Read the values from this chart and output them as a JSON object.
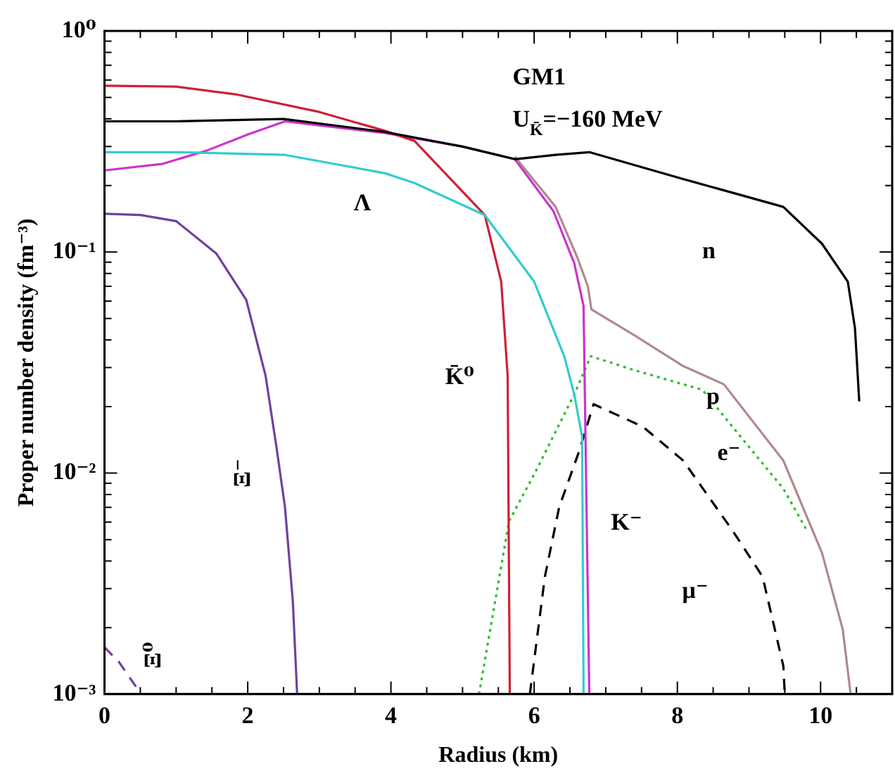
{
  "chart_data": {
    "type": "line",
    "xlabel": "Radius (km)",
    "ylabel": "Proper number density (fm⁻³)",
    "log": "y",
    "annotations": [
      "GM1",
      "U$_{K̄}$=−160 MeV"
    ],
    "xlim": [
      0,
      11
    ],
    "xticks": [
      0,
      {
        "value": 0.5,
        "label": null
      },
      {
        "value": 1,
        "label": null
      },
      {
        "value": 1.5,
        "label": null
      },
      2,
      {
        "value": 2.5,
        "label": null
      },
      {
        "value": 3,
        "label": null
      },
      {
        "value": 3.5,
        "label": null
      },
      4,
      {
        "value": 4.5,
        "label": null
      },
      {
        "value": 5,
        "label": null
      },
      {
        "value": 5.5,
        "label": null
      },
      6,
      {
        "value": 6.5,
        "label": null
      },
      {
        "value": 7,
        "label": null
      },
      {
        "value": 7.5,
        "label": null
      },
      8,
      {
        "value": 8.5,
        "label": null
      },
      {
        "value": 9,
        "label": null
      },
      {
        "value": 9.5,
        "label": null
      },
      10,
      {
        "value": 10.5,
        "label": null
      }
    ],
    "ylim": [
      0.001,
      1
    ],
    "yticks": [
      {
        "value": 0.001,
        "label": "10⁻³"
      },
      {
        "value": 0.002,
        "label": null
      },
      {
        "value": 0.003,
        "label": null
      },
      {
        "value": 0.004,
        "label": null
      },
      {
        "value": 0.005,
        "label": null
      },
      {
        "value": 0.006,
        "label": null
      },
      {
        "value": 0.007,
        "label": null
      },
      {
        "value": 0.008,
        "label": null
      },
      {
        "value": 0.009,
        "label": null
      },
      {
        "value": 0.01,
        "label": "10⁻²"
      },
      {
        "value": 0.02,
        "label": null
      },
      {
        "value": 0.03,
        "label": null
      },
      {
        "value": 0.04,
        "label": null
      },
      {
        "value": 0.05,
        "label": null
      },
      {
        "value": 0.06,
        "label": null
      },
      {
        "value": 0.07,
        "label": null
      },
      {
        "value": 0.08,
        "label": null
      },
      {
        "value": 0.09,
        "label": null
      },
      {
        "value": 0.1,
        "label": "10⁻¹"
      },
      {
        "value": 0.2,
        "label": null
      },
      {
        "value": 0.3,
        "label": null
      },
      {
        "value": 0.4,
        "label": null
      },
      {
        "value": 0.5,
        "label": null
      },
      {
        "value": 0.6,
        "label": null
      },
      {
        "value": 0.7,
        "label": null
      },
      {
        "value": 0.8,
        "label": null
      },
      {
        "value": 0.9,
        "label": null
      },
      {
        "value": 1,
        "label": "10⁰"
      }
    ],
    "series": [
      {
        "name": "n",
        "color": "#000000",
        "line_style": "solid",
        "x": [
          0,
          1,
          2.5,
          3.9,
          5.0,
          5.73,
          6.3,
          6.77,
          8.08,
          9.48,
          10.02,
          10.38,
          10.48,
          10.54
        ],
        "values": [
          0.39,
          0.39,
          0.4,
          0.35,
          0.3,
          0.263,
          0.275,
          0.283,
          0.214,
          0.16,
          0.109,
          0.0735,
          0.0453,
          0.0211
        ]
      },
      {
        "name": "p",
        "color": "#b08890",
        "line_style": "solid",
        "x": [
          5.73,
          6.3,
          6.6,
          6.75,
          6.8,
          7.4,
          8.08,
          8.65,
          9.48,
          10.02,
          10.31,
          10.42
        ],
        "values": [
          0.27,
          0.16,
          0.095,
          0.07,
          0.055,
          0.042,
          0.0305,
          0.0252,
          0.0114,
          0.00435,
          0.00196,
          0.001
        ]
      },
      {
        "name": "Λ",
        "color": "#33cccc",
        "line_style": "solid",
        "x": [
          0,
          1,
          2.52,
          3.92,
          4.33,
          5.31,
          6.0,
          6.42,
          6.56,
          6.67,
          6.69
        ],
        "values": [
          0.283,
          0.283,
          0.275,
          0.227,
          0.205,
          0.147,
          0.0735,
          0.0338,
          0.0227,
          0.0146,
          0.001
        ]
      },
      {
        "name": "K̄⁰",
        "color": "#cc2233",
        "line_style": "solid",
        "x": [
          0,
          1,
          1.83,
          3.0,
          3.92,
          4.33,
          5.31,
          5.54,
          5.63,
          5.66
        ],
        "values": [
          0.565,
          0.56,
          0.517,
          0.43,
          0.353,
          0.318,
          0.147,
          0.0735,
          0.0275,
          0.001
        ]
      },
      {
        "name": "K⁻",
        "color": "#cc33cc",
        "line_style": "solid",
        "x": [
          0,
          0.8,
          1.42,
          2.0,
          2.52,
          3.92,
          5.0,
          5.73,
          6.27,
          6.56,
          6.69,
          6.77
        ],
        "values": [
          0.234,
          0.25,
          0.287,
          0.34,
          0.39,
          0.345,
          0.3,
          0.263,
          0.153,
          0.089,
          0.057,
          0.001
        ]
      },
      {
        "name": "Ξ⁻",
        "color": "#7040a0",
        "line_style": "solid",
        "x": [
          0,
          0.5,
          1.0,
          1.56,
          1.98,
          2.25,
          2.4,
          2.52,
          2.63,
          2.69
        ],
        "values": [
          0.149,
          0.147,
          0.138,
          0.0986,
          0.0607,
          0.0275,
          0.0132,
          0.00703,
          0.00263,
          0.001
        ]
      },
      {
        "name": "Ξ⁰",
        "color": "#7040a0",
        "line_style": "dashed",
        "x": [
          0,
          0.2,
          0.44,
          0.48
        ],
        "values": [
          0.00163,
          0.0014,
          0.00108,
          0.001
        ]
      },
      {
        "name": "e⁻",
        "color": "#33bb33",
        "line_style": "dotted",
        "x": [
          5.23,
          5.65,
          6.0,
          6.56,
          6.79,
          7.4,
          8.35,
          8.77,
          9.48,
          9.81
        ],
        "values": [
          0.001,
          0.00607,
          0.00986,
          0.0227,
          0.0338,
          0.0292,
          0.0238,
          0.0162,
          0.0085,
          0.0055
        ]
      },
      {
        "name": "μ⁻",
        "color": "#000000",
        "line_style": "dashed",
        "x": [
          5.94,
          6.15,
          6.35,
          6.63,
          6.83,
          7.52,
          8.08,
          8.77,
          9.19,
          9.48,
          9.5
        ],
        "values": [
          0.001,
          0.0034,
          0.00703,
          0.0126,
          0.0205,
          0.0162,
          0.0114,
          0.0055,
          0.0034,
          0.00134,
          0.001
        ]
      }
    ]
  }
}
